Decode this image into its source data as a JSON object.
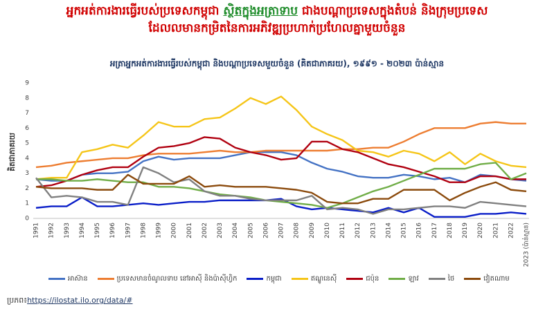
{
  "chart_data": {
    "type": "line",
    "title_parts": [
      "អ្នកអត់ការងារធ្វើរបស់ប្រទេសកម្ពុជា",
      "ស្ថិតក្នុងអត្រាទាប",
      "ជាងបណ្តាប្រទេសក្នុងតំបន់ និងក្រុមប្រទេស",
      "ដែលលមានកម្រិតនៃការអភិវឌ្ឍប្រហាក់ប្រហែលគ្នាមួយចំនួន"
    ],
    "subtitle": "អត្រាអ្នកអត់ការងារធ្វើរបស់កម្ពុជា និងបណ្តាប្រទេសមួយចំនួន  (គិតជាភាគរយ), ១៩៩១ - ២០២៣ ប៉ាន់ស្មាន",
    "y_label": "គិតជាភាគរយ",
    "categories": [
      "1991",
      "1992",
      "1993",
      "1994",
      "1995",
      "1996",
      "1997",
      "1998",
      "1999",
      "2000",
      "2001",
      "2002",
      "2003",
      "2004",
      "2005",
      "2006",
      "2007",
      "2008",
      "2009",
      "2010",
      "2011",
      "2012",
      "2013",
      "2014",
      "2015",
      "2016",
      "2017",
      "2018",
      "2019",
      "2020",
      "2021",
      "2022",
      "2023 (ប៉ាន់ស្មាន)"
    ],
    "ylim": [
      0,
      9
    ],
    "yticks": [
      0,
      1,
      2,
      3,
      4,
      5,
      6,
      7,
      8,
      9
    ],
    "series": [
      {
        "name": "អាស៊ាន",
        "color": "#4472c4",
        "values": [
          2.6,
          2.5,
          2.5,
          2.9,
          3.0,
          3.0,
          3.1,
          3.8,
          4.1,
          3.9,
          4.0,
          4.0,
          4.0,
          4.2,
          4.4,
          4.4,
          4.4,
          4.2,
          3.7,
          3.3,
          3.1,
          2.8,
          2.7,
          2.7,
          2.9,
          2.8,
          2.6,
          2.7,
          2.4,
          2.9,
          2.8,
          2.6,
          2.5
        ]
      },
      {
        "name": "ប្រទេសមានចំណូលទាប នៅអាស៊ី និងប៉ាស៊ីហ្វិក",
        "color": "#ed7d31",
        "values": [
          3.4,
          3.5,
          3.7,
          3.8,
          3.9,
          4.0,
          4.0,
          4.2,
          4.3,
          4.3,
          4.3,
          4.4,
          4.5,
          4.4,
          4.4,
          4.5,
          4.5,
          4.5,
          4.5,
          4.5,
          4.6,
          4.6,
          4.7,
          4.7,
          5.1,
          5.6,
          6.0,
          6.0,
          6.0,
          6.3,
          6.4,
          6.3,
          6.3
        ]
      },
      {
        "name": "កម្ពុជា",
        "color": "#0a1ec8",
        "values": [
          0.7,
          0.8,
          0.8,
          1.4,
          0.8,
          0.8,
          0.9,
          1.0,
          0.9,
          1.0,
          1.1,
          1.1,
          1.2,
          1.2,
          1.2,
          1.2,
          1.3,
          0.8,
          0.6,
          0.7,
          0.6,
          0.5,
          0.4,
          0.7,
          0.4,
          0.7,
          0.1,
          0.1,
          0.1,
          0.3,
          0.3,
          0.4,
          0.3
        ]
      },
      {
        "name": "ឥណ្ឌូនេស៊ី",
        "color": "#f5c518",
        "values": [
          2.6,
          2.7,
          2.7,
          4.4,
          4.6,
          4.9,
          4.7,
          5.5,
          6.4,
          6.1,
          6.1,
          6.6,
          6.7,
          7.3,
          8.0,
          7.6,
          8.1,
          7.2,
          6.1,
          5.6,
          5.2,
          4.5,
          4.4,
          4.1,
          4.5,
          4.3,
          3.8,
          4.4,
          3.6,
          4.3,
          3.8,
          3.5,
          3.4
        ]
      },
      {
        "name": "ជប៉ុន",
        "color": "#b00010",
        "values": [
          2.1,
          2.2,
          2.5,
          2.9,
          3.2,
          3.4,
          3.4,
          4.1,
          4.7,
          4.8,
          5.0,
          5.4,
          5.3,
          4.7,
          4.4,
          4.2,
          3.9,
          4.0,
          5.1,
          5.1,
          4.6,
          4.4,
          4.0,
          3.6,
          3.4,
          3.1,
          2.8,
          2.4,
          2.4,
          2.8,
          2.8,
          2.6,
          2.6
        ]
      },
      {
        "name": "ឡាវ",
        "color": "#70ad47",
        "values": [
          2.6,
          2.6,
          2.5,
          2.5,
          2.6,
          2.5,
          2.4,
          2.4,
          2.1,
          2.1,
          2.0,
          1.8,
          1.6,
          1.5,
          1.4,
          1.2,
          1.1,
          1.0,
          0.9,
          0.7,
          1.0,
          1.4,
          1.8,
          2.1,
          2.5,
          2.9,
          3.3,
          3.3,
          3.3,
          3.6,
          3.7,
          2.6,
          3.0
        ]
      },
      {
        "name": "ថៃ",
        "color": "#808080",
        "values": [
          2.7,
          1.4,
          1.5,
          1.4,
          1.1,
          1.1,
          0.9,
          3.4,
          3.0,
          2.4,
          2.6,
          1.8,
          1.5,
          1.5,
          1.3,
          1.2,
          1.2,
          1.2,
          1.5,
          0.6,
          0.7,
          0.6,
          0.3,
          0.6,
          0.6,
          0.7,
          0.8,
          0.8,
          0.7,
          1.1,
          1.0,
          0.9,
          0.8
        ]
      },
      {
        "name": "វៀតណាម",
        "color": "#8b4a0c",
        "values": [
          2.1,
          2.0,
          2.0,
          2.0,
          1.9,
          1.9,
          2.9,
          2.3,
          2.3,
          2.3,
          2.8,
          2.1,
          2.2,
          2.1,
          2.1,
          2.1,
          2.0,
          1.9,
          1.7,
          1.1,
          1.0,
          1.0,
          1.3,
          1.3,
          1.9,
          1.9,
          1.9,
          1.2,
          1.7,
          2.1,
          2.4,
          1.9,
          1.8
        ]
      }
    ],
    "source_label": "ប្រភព៖",
    "source_url": "https://ilostat.ilo.org/data/#"
  }
}
